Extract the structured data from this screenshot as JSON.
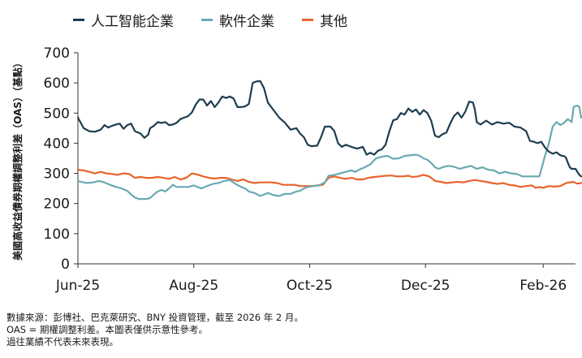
{
  "chart_data": {
    "type": "line",
    "ylabel": "美國高收益債券期權調整利差（OAS）（基點）",
    "ylim": [
      0,
      700
    ],
    "yticks": [
      0,
      100,
      200,
      300,
      400,
      500,
      600,
      700
    ],
    "x_ticks": [
      {
        "label": "Jun-25",
        "t": 0
      },
      {
        "label": "Aug-25",
        "t": 61
      },
      {
        "label": "Oct-25",
        "t": 122
      },
      {
        "label": "Dec-25",
        "t": 183
      },
      {
        "label": "Feb-26",
        "t": 245
      }
    ],
    "x_range": [
      0,
      262
    ],
    "legend_position": "top",
    "series": [
      {
        "name": "人工智能企業",
        "color": "#1d3d50",
        "points": [
          [
            0,
            485
          ],
          [
            3,
            450
          ],
          [
            6,
            440
          ],
          [
            9,
            438
          ],
          [
            12,
            445
          ],
          [
            14,
            460
          ],
          [
            16,
            452
          ],
          [
            18,
            458
          ],
          [
            20,
            462
          ],
          [
            22,
            465
          ],
          [
            24,
            448
          ],
          [
            26,
            460
          ],
          [
            28,
            465
          ],
          [
            30,
            440
          ],
          [
            33,
            432
          ],
          [
            35,
            418
          ],
          [
            37,
            428
          ],
          [
            38,
            450
          ],
          [
            40,
            458
          ],
          [
            42,
            470
          ],
          [
            44,
            467
          ],
          [
            46,
            470
          ],
          [
            48,
            460
          ],
          [
            50,
            462
          ],
          [
            52,
            468
          ],
          [
            54,
            480
          ],
          [
            56,
            485
          ],
          [
            58,
            490
          ],
          [
            60,
            502
          ],
          [
            62,
            528
          ],
          [
            64,
            545
          ],
          [
            66,
            545
          ],
          [
            68,
            525
          ],
          [
            70,
            540
          ],
          [
            72,
            520
          ],
          [
            74,
            535
          ],
          [
            76,
            555
          ],
          [
            78,
            550
          ],
          [
            80,
            555
          ],
          [
            82,
            548
          ],
          [
            84,
            520
          ],
          [
            86,
            520
          ],
          [
            88,
            522
          ],
          [
            90,
            530
          ],
          [
            92,
            600
          ],
          [
            94,
            605
          ],
          [
            96,
            606
          ],
          [
            98,
            582
          ],
          [
            100,
            535
          ],
          [
            103,
            510
          ],
          [
            106,
            485
          ],
          [
            109,
            468
          ],
          [
            112,
            445
          ],
          [
            115,
            450
          ],
          [
            117,
            432
          ],
          [
            119,
            420
          ],
          [
            121,
            395
          ],
          [
            123,
            390
          ],
          [
            126,
            392
          ],
          [
            128,
            420
          ],
          [
            130,
            455
          ],
          [
            133,
            455
          ],
          [
            135,
            440
          ],
          [
            137,
            400
          ],
          [
            139,
            388
          ],
          [
            141,
            395
          ],
          [
            144,
            388
          ],
          [
            147,
            382
          ],
          [
            150,
            388
          ],
          [
            152,
            362
          ],
          [
            154,
            368
          ],
          [
            156,
            362
          ],
          [
            158,
            375
          ],
          [
            160,
            380
          ],
          [
            162,
            395
          ],
          [
            164,
            440
          ],
          [
            166,
            476
          ],
          [
            168,
            480
          ],
          [
            170,
            500
          ],
          [
            172,
            495
          ],
          [
            174,
            515
          ],
          [
            176,
            504
          ],
          [
            178,
            512
          ],
          [
            180,
            495
          ],
          [
            182,
            510
          ],
          [
            184,
            500
          ],
          [
            186,
            475
          ],
          [
            188,
            425
          ],
          [
            190,
            420
          ],
          [
            192,
            430
          ],
          [
            194,
            435
          ],
          [
            196,
            465
          ],
          [
            198,
            490
          ],
          [
            200,
            502
          ],
          [
            202,
            485
          ],
          [
            204,
            505
          ],
          [
            206,
            538
          ],
          [
            208,
            535
          ],
          [
            209,
            512
          ],
          [
            210,
            470
          ],
          [
            212,
            462
          ],
          [
            215,
            475
          ],
          [
            218,
            462
          ],
          [
            221,
            470
          ],
          [
            224,
            465
          ],
          [
            227,
            468
          ],
          [
            230,
            455
          ],
          [
            233,
            452
          ],
          [
            236,
            440
          ],
          [
            238,
            408
          ],
          [
            240,
            405
          ],
          [
            242,
            400
          ],
          [
            244,
            405
          ],
          [
            246,
            385
          ],
          [
            248,
            372
          ],
          [
            250,
            365
          ],
          [
            252,
            370
          ],
          [
            254,
            360
          ],
          [
            256,
            357
          ],
          [
            257,
            352
          ],
          [
            258,
            335
          ],
          [
            259,
            320
          ],
          [
            260,
            315
          ],
          [
            262,
            315
          ],
          [
            264,
            295
          ],
          [
            265,
            290
          ]
        ]
      },
      {
        "name": "軟件企業",
        "color": "#6aa9b1",
        "points": [
          [
            0,
            275
          ],
          [
            3,
            270
          ],
          [
            5,
            268
          ],
          [
            8,
            270
          ],
          [
            11,
            275
          ],
          [
            14,
            270
          ],
          [
            17,
            262
          ],
          [
            20,
            255
          ],
          [
            23,
            250
          ],
          [
            26,
            242
          ],
          [
            28,
            230
          ],
          [
            30,
            220
          ],
          [
            32,
            215
          ],
          [
            34,
            215
          ],
          [
            36,
            215
          ],
          [
            38,
            218
          ],
          [
            40,
            230
          ],
          [
            42,
            240
          ],
          [
            44,
            245
          ],
          [
            46,
            240
          ],
          [
            48,
            250
          ],
          [
            50,
            262
          ],
          [
            52,
            255
          ],
          [
            55,
            255
          ],
          [
            58,
            255
          ],
          [
            61,
            260
          ],
          [
            63,
            255
          ],
          [
            65,
            250
          ],
          [
            68,
            258
          ],
          [
            71,
            265
          ],
          [
            74,
            268
          ],
          [
            77,
            275
          ],
          [
            80,
            278
          ],
          [
            83,
            265
          ],
          [
            86,
            255
          ],
          [
            88,
            250
          ],
          [
            90,
            240
          ],
          [
            93,
            235
          ],
          [
            96,
            225
          ],
          [
            98,
            230
          ],
          [
            100,
            235
          ],
          [
            103,
            228
          ],
          [
            106,
            225
          ],
          [
            109,
            232
          ],
          [
            112,
            232
          ],
          [
            115,
            240
          ],
          [
            117,
            242
          ],
          [
            119,
            250
          ],
          [
            121,
            255
          ],
          [
            124,
            258
          ],
          [
            127,
            260
          ],
          [
            130,
            270
          ],
          [
            132,
            292
          ],
          [
            135,
            295
          ],
          [
            138,
            300
          ],
          [
            141,
            305
          ],
          [
            144,
            310
          ],
          [
            146,
            305
          ],
          [
            149,
            315
          ],
          [
            151,
            320
          ],
          [
            154,
            330
          ],
          [
            157,
            350
          ],
          [
            160,
            355
          ],
          [
            163,
            358
          ],
          [
            166,
            348
          ],
          [
            169,
            350
          ],
          [
            172,
            358
          ],
          [
            175,
            360
          ],
          [
            178,
            362
          ],
          [
            180,
            358
          ],
          [
            182,
            350
          ],
          [
            184,
            345
          ],
          [
            186,
            335
          ],
          [
            188,
            320
          ],
          [
            190,
            315
          ],
          [
            192,
            320
          ],
          [
            195,
            325
          ],
          [
            198,
            322
          ],
          [
            201,
            315
          ],
          [
            204,
            320
          ],
          [
            207,
            325
          ],
          [
            210,
            315
          ],
          [
            213,
            320
          ],
          [
            216,
            312
          ],
          [
            219,
            310
          ],
          [
            222,
            300
          ],
          [
            225,
            305
          ],
          [
            228,
            300
          ],
          [
            231,
            298
          ],
          [
            234,
            290
          ],
          [
            237,
            290
          ],
          [
            240,
            290
          ],
          [
            243,
            290
          ],
          [
            246,
            360
          ],
          [
            248,
            400
          ],
          [
            250,
            455
          ],
          [
            252,
            470
          ],
          [
            254,
            460
          ],
          [
            256,
            468
          ],
          [
            258,
            480
          ],
          [
            260,
            470
          ],
          [
            261,
            520
          ],
          [
            262,
            523
          ],
          [
            263,
            525
          ],
          [
            264,
            520
          ],
          [
            265,
            485
          ]
        ]
      },
      {
        "name": "其他",
        "color": "#e8642c",
        "points": [
          [
            0,
            312
          ],
          [
            3,
            310
          ],
          [
            6,
            305
          ],
          [
            9,
            300
          ],
          [
            12,
            305
          ],
          [
            15,
            300
          ],
          [
            18,
            298
          ],
          [
            21,
            295
          ],
          [
            24,
            300
          ],
          [
            27,
            298
          ],
          [
            30,
            285
          ],
          [
            33,
            288
          ],
          [
            36,
            285
          ],
          [
            39,
            285
          ],
          [
            42,
            288
          ],
          [
            45,
            285
          ],
          [
            48,
            282
          ],
          [
            51,
            288
          ],
          [
            54,
            280
          ],
          [
            57,
            285
          ],
          [
            60,
            300
          ],
          [
            63,
            296
          ],
          [
            66,
            290
          ],
          [
            69,
            285
          ],
          [
            72,
            283
          ],
          [
            75,
            285
          ],
          [
            78,
            285
          ],
          [
            81,
            280
          ],
          [
            84,
            275
          ],
          [
            87,
            280
          ],
          [
            90,
            272
          ],
          [
            93,
            268
          ],
          [
            96,
            270
          ],
          [
            99,
            270
          ],
          [
            102,
            270
          ],
          [
            105,
            268
          ],
          [
            108,
            262
          ],
          [
            111,
            262
          ],
          [
            114,
            262
          ],
          [
            117,
            258
          ],
          [
            120,
            258
          ],
          [
            123,
            258
          ],
          [
            126,
            260
          ],
          [
            129,
            262
          ],
          [
            132,
            285
          ],
          [
            135,
            290
          ],
          [
            138,
            285
          ],
          [
            141,
            282
          ],
          [
            144,
            285
          ],
          [
            147,
            280
          ],
          [
            150,
            280
          ],
          [
            153,
            285
          ],
          [
            156,
            288
          ],
          [
            159,
            290
          ],
          [
            162,
            292
          ],
          [
            165,
            293
          ],
          [
            168,
            290
          ],
          [
            171,
            290
          ],
          [
            174,
            292
          ],
          [
            176,
            288
          ],
          [
            179,
            290
          ],
          [
            182,
            295
          ],
          [
            185,
            290
          ],
          [
            188,
            275
          ],
          [
            191,
            272
          ],
          [
            194,
            268
          ],
          [
            197,
            270
          ],
          [
            200,
            272
          ],
          [
            203,
            270
          ],
          [
            206,
            275
          ],
          [
            209,
            278
          ],
          [
            212,
            275
          ],
          [
            215,
            272
          ],
          [
            218,
            268
          ],
          [
            221,
            265
          ],
          [
            224,
            268
          ],
          [
            227,
            262
          ],
          [
            230,
            260
          ],
          [
            233,
            255
          ],
          [
            236,
            258
          ],
          [
            239,
            260
          ],
          [
            241,
            252
          ],
          [
            243,
            255
          ],
          [
            245,
            252
          ],
          [
            248,
            258
          ],
          [
            251,
            256
          ],
          [
            254,
            258
          ],
          [
            257,
            268
          ],
          [
            259,
            270
          ],
          [
            261,
            272
          ],
          [
            262,
            268
          ],
          [
            263,
            266
          ],
          [
            265,
            268
          ]
        ]
      }
    ]
  },
  "footnote": {
    "line1": "數據來源：彭博社、巴克萊研究、BNY 投資管理，截至 2026 年 2 月。",
    "line2": "OAS = 期權調整利差。本圖表僅供示意性參考。",
    "line3": "過往業績不代表未來表現。"
  }
}
